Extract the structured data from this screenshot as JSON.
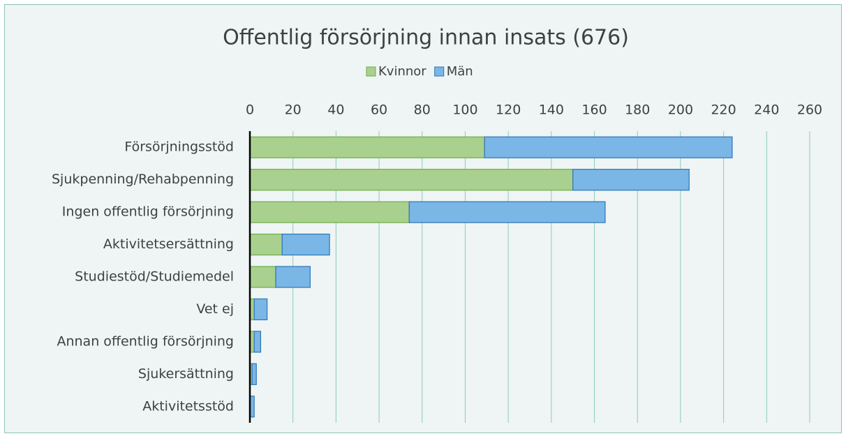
{
  "chart_data": {
    "type": "stacked_barh",
    "title": "Offentlig försörjning innan insats (676)",
    "categories": [
      "Försörjningsstöd",
      "Sjukpenning/Rehabpenning",
      "Ingen offentlig försörjning",
      "Aktivitetsersättning",
      "Studiestöd/Studiemedel",
      "Vet ej",
      "Annan offentlig försörjning",
      "Sjukersättning",
      "Aktivitetsstöd"
    ],
    "series": [
      {
        "name": "Kvinnor",
        "color": "#a9d08e",
        "edge": "#70ad47",
        "values": [
          109,
          150,
          74,
          15,
          12,
          2,
          2,
          1,
          0
        ]
      },
      {
        "name": "Män",
        "color": "#7ab6e6",
        "edge": "#2e75b6",
        "values": [
          115,
          54,
          91,
          22,
          16,
          6,
          3,
          2,
          2
        ]
      }
    ],
    "xlim": [
      0,
      260
    ],
    "xticks": [
      0,
      20,
      40,
      60,
      80,
      100,
      120,
      140,
      160,
      180,
      200,
      220,
      240,
      260
    ],
    "grid": true,
    "legend": "top"
  }
}
